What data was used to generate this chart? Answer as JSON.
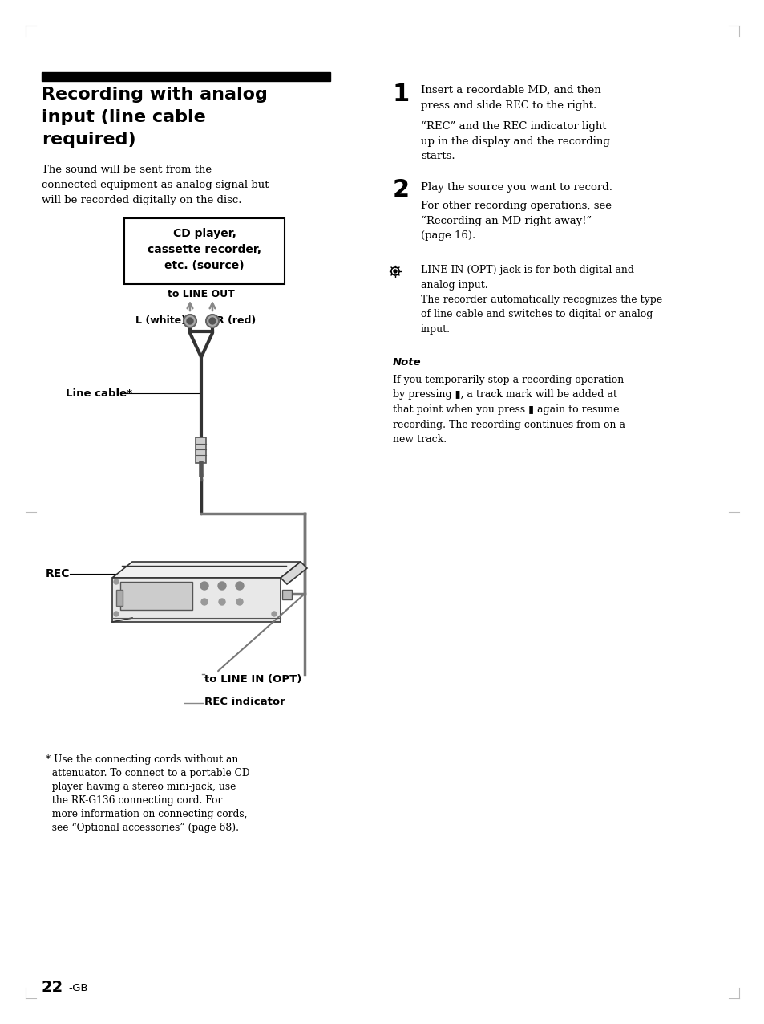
{
  "background_color": "#ffffff",
  "title_bar_color": "#000000",
  "title_text_line1": "Recording with analog",
  "title_text_line2": "input (line cable",
  "title_text_line3": "required)",
  "body_text_left": "The sound will be sent from the\nconnected equipment as analog signal but\nwill be recorded digitally on the disc.",
  "box_label_line1": "CD player,",
  "box_label_line2": "cassette recorder,",
  "box_label_line3": "etc. (source)",
  "label_line_out": "to LINE OUT",
  "label_L": "L (white)",
  "label_R": "R (red)",
  "label_cable": "Line cable*",
  "label_REC": "REC",
  "label_line_in": "to LINE IN (OPT)",
  "label_rec_indicator": "REC indicator",
  "footnote_star": "* Use the connecting cords without an",
  "footnote_line2": "  attenuator. To connect to a portable CD",
  "footnote_line3": "  player having a stereo mini-jack, use",
  "footnote_line4": "  the RK-G136 connecting cord. For",
  "footnote_line5": "  more information on connecting cords,",
  "footnote_line6": "  see “Optional accessories” (page 68).",
  "page_number": "22",
  "page_suffix": "-GB",
  "step1_num": "1",
  "step1_title_line1": "Insert a recordable MD, and then",
  "step1_title_line2": "press and slide REC to the right.",
  "step1_body": "“REC” and the REC indicator light\nup in the display and the recording\nstarts.",
  "step2_num": "2",
  "step2_title": "Play the source you want to record.",
  "step2_body": "For other recording operations, see\n“Recording an MD right away!”\n(page 16).",
  "tip_text": "LINE IN (OPT) jack is for both digital and\nanalog input.\nThe recorder automatically recognizes the type\nof line cable and switches to digital or analog\ninput.",
  "note_label": "Note",
  "note_text": "If you temporarily stop a recording operation\nby pressing ▮, a track mark will be added at\nthat point when you press ▮ again to resume\nrecording. The recording continues from on a\nnew track.",
  "diagram_gray": "#777777",
  "diagram_dark": "#333333",
  "cable_color": "#555555",
  "arrow_color": "#888888"
}
